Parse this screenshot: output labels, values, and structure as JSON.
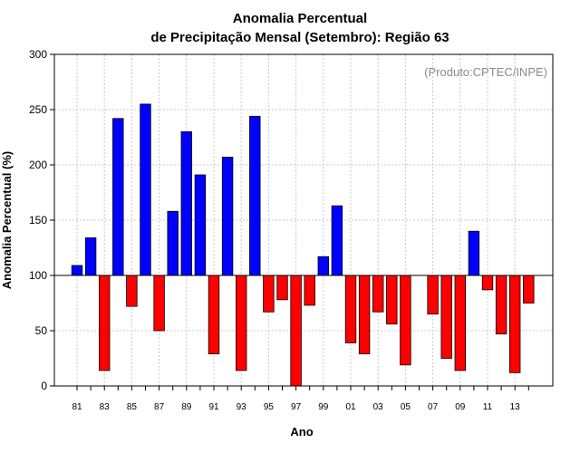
{
  "chart_data": {
    "type": "bar",
    "title": [
      "Anomalia Percentual",
      "de Precipitação Mensal (Setembro): Região 63"
    ],
    "xlabel": "Ano",
    "ylabel": "Anomalia Percentual (%)",
    "annotation": "(Produto:CPTEC/INPE)",
    "baseline": 100,
    "ylim": [
      0,
      300
    ],
    "yticks": [
      "0",
      "50",
      "100",
      "150",
      "200",
      "250",
      "300"
    ],
    "grid": true,
    "categories": [
      "81",
      "82",
      "83",
      "84",
      "85",
      "86",
      "87",
      "88",
      "89",
      "90",
      "91",
      "92",
      "93",
      "94",
      "95",
      "96",
      "97",
      "98",
      "99",
      "00",
      "01",
      "02",
      "03",
      "04",
      "05",
      "06",
      "07",
      "08",
      "09",
      "10",
      "11",
      "12",
      "13",
      "14"
    ],
    "xtick_labels": [
      "81",
      "83",
      "85",
      "87",
      "89",
      "91",
      "93",
      "95",
      "97",
      "99",
      "01",
      "03",
      "05",
      "07",
      "09",
      "11",
      "13"
    ],
    "values": [
      109,
      134,
      14,
      242,
      72,
      255,
      50,
      158,
      230,
      191,
      29,
      207,
      14,
      244,
      67,
      78,
      0,
      73,
      117,
      163,
      39,
      29,
      67,
      56,
      19,
      null,
      65,
      25,
      14,
      140,
      87,
      47,
      12,
      75
    ],
    "colors": {
      "above": "#0000ff",
      "below": "#ff0000",
      "stroke": "#000000"
    }
  }
}
